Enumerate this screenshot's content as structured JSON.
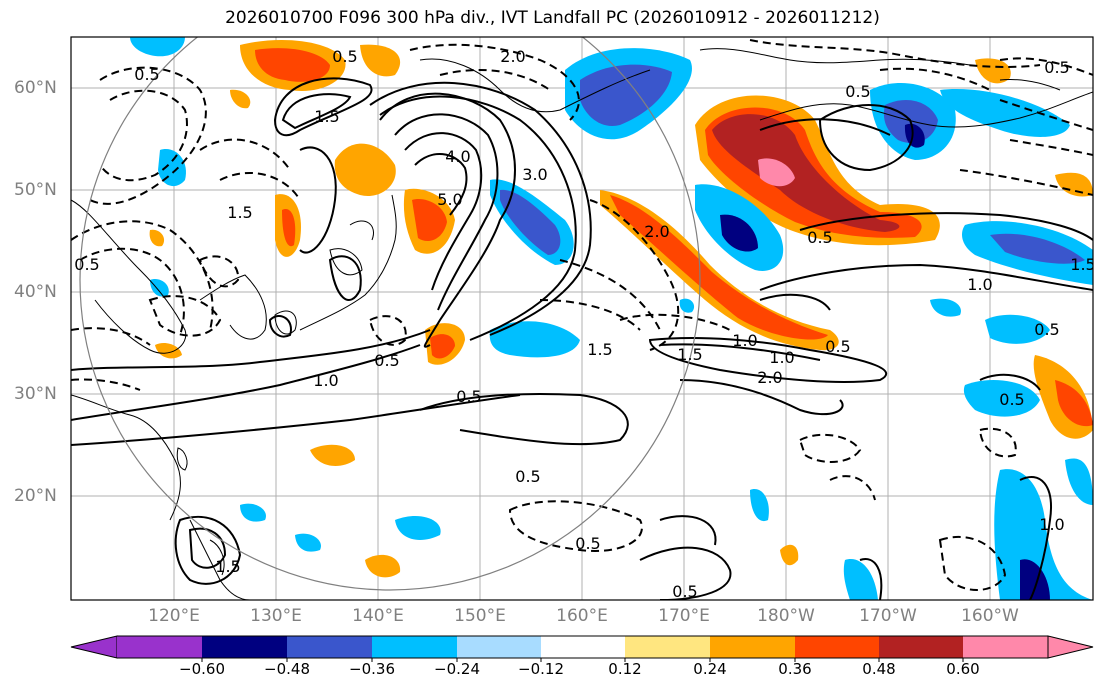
{
  "title": "2026010700 F096 300 hPa div., IVT Landfall PC (2026010912 - 2026011212)",
  "map": {
    "lat_labels": [
      "60°N",
      "50°N",
      "40°N",
      "30°N",
      "20°N"
    ],
    "lon_labels": [
      "120°E",
      "130°E",
      "140°E",
      "150°E",
      "160°E",
      "170°E",
      "180°W",
      "170°W",
      "160°W"
    ],
    "contour_labels": [
      "0.5",
      "2.0",
      "1.5",
      "0.5",
      "4.0",
      "5.0",
      "3.0",
      "2.0",
      "1.5",
      "0.5",
      "1.0",
      "0.5",
      "1.5",
      "0.5",
      "1.0",
      "0.5",
      "0.5",
      "0.5",
      "0.5",
      "1.5",
      "2.0",
      "1.0",
      "1.0",
      "0.5",
      "1.5",
      "1.0",
      "0.5",
      "0.5",
      "0.5",
      "0.5",
      "1.5"
    ],
    "colors": {
      "coast": "#000000",
      "grid": "#b0b0b0",
      "circle": "#808080"
    }
  },
  "colorbar": {
    "ticks": [
      "−0.60",
      "−0.48",
      "−0.36",
      "−0.24",
      "−0.12",
      "0.12",
      "0.24",
      "0.36",
      "0.48",
      "0.60"
    ],
    "colors": [
      "#9932cc",
      "#000080",
      "#3a56cc",
      "#00bfff",
      "#a8dcff",
      "#ffffff",
      "#ffe680",
      "#ffa500",
      "#ff4500",
      "#b22222",
      "#ff88aa"
    ]
  }
}
